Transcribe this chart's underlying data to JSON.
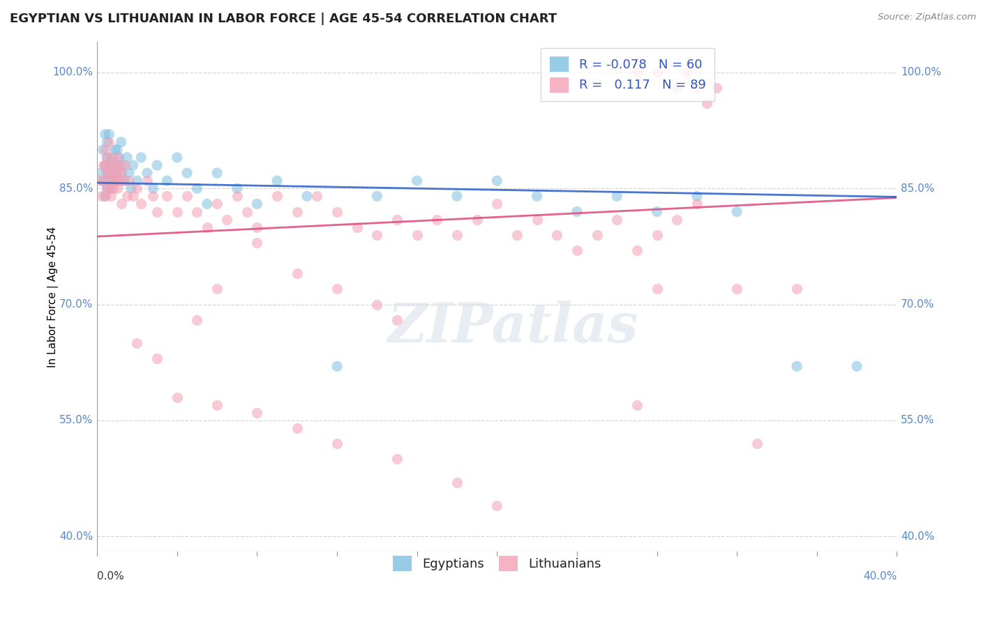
{
  "title": "EGYPTIAN VS LITHUANIAN IN LABOR FORCE | AGE 45-54 CORRELATION CHART",
  "source": "Source: ZipAtlas.com",
  "ylabel": "In Labor Force | Age 45-54",
  "xlim": [
    0.0,
    0.4
  ],
  "ylim": [
    0.38,
    1.04
  ],
  "yticks": [
    0.4,
    0.55,
    0.7,
    0.85,
    1.0
  ],
  "ytick_labels": [
    "40.0%",
    "55.0%",
    "70.0%",
    "85.0%",
    "100.0%"
  ],
  "xtick_left_label": "0.0%",
  "xtick_right_label": "40.0%",
  "egyptian_R": -0.078,
  "egyptian_N": 60,
  "lithuanian_R": 0.117,
  "lithuanian_N": 89,
  "egyptian_color": "#7fbfdf",
  "lithuanian_color": "#f4a0b5",
  "egyptian_line_color": "#3366cc",
  "lithuanian_line_color": "#e05080",
  "watermark_text": "ZIPatlas",
  "legend_color": "#3355bb",
  "background_color": "#ffffff",
  "grid_color": "#cccccc",
  "eg_x": [
    0.002,
    0.003,
    0.003,
    0.004,
    0.004,
    0.004,
    0.005,
    0.005,
    0.005,
    0.005,
    0.006,
    0.006,
    0.006,
    0.007,
    0.007,
    0.007,
    0.008,
    0.008,
    0.009,
    0.009,
    0.01,
    0.01,
    0.01,
    0.011,
    0.012,
    0.012,
    0.013,
    0.014,
    0.015,
    0.016,
    0.017,
    0.018,
    0.02,
    0.022,
    0.025,
    0.028,
    0.03,
    0.035,
    0.04,
    0.045,
    0.05,
    0.055,
    0.06,
    0.07,
    0.08,
    0.09,
    0.105,
    0.12,
    0.14,
    0.16,
    0.18,
    0.2,
    0.22,
    0.24,
    0.26,
    0.28,
    0.3,
    0.32,
    0.35,
    0.38
  ],
  "eg_y": [
    0.87,
    0.9,
    0.86,
    0.88,
    0.92,
    0.84,
    0.89,
    0.87,
    0.85,
    0.91,
    0.88,
    0.86,
    0.92,
    0.89,
    0.87,
    0.85,
    0.88,
    0.86,
    0.9,
    0.87,
    0.88,
    0.86,
    0.9,
    0.89,
    0.87,
    0.91,
    0.88,
    0.86,
    0.89,
    0.87,
    0.85,
    0.88,
    0.86,
    0.89,
    0.87,
    0.85,
    0.88,
    0.86,
    0.89,
    0.87,
    0.85,
    0.83,
    0.87,
    0.85,
    0.83,
    0.86,
    0.84,
    0.62,
    0.84,
    0.86,
    0.84,
    0.86,
    0.84,
    0.82,
    0.84,
    0.82,
    0.84,
    0.82,
    0.62,
    0.62
  ],
  "lt_x": [
    0.001,
    0.002,
    0.003,
    0.003,
    0.004,
    0.004,
    0.004,
    0.005,
    0.005,
    0.005,
    0.006,
    0.006,
    0.006,
    0.007,
    0.007,
    0.007,
    0.008,
    0.008,
    0.008,
    0.009,
    0.009,
    0.01,
    0.01,
    0.01,
    0.011,
    0.011,
    0.012,
    0.012,
    0.013,
    0.014,
    0.015,
    0.016,
    0.018,
    0.02,
    0.022,
    0.025,
    0.028,
    0.03,
    0.035,
    0.04,
    0.045,
    0.05,
    0.055,
    0.06,
    0.065,
    0.07,
    0.075,
    0.08,
    0.09,
    0.1,
    0.11,
    0.12,
    0.13,
    0.14,
    0.15,
    0.16,
    0.17,
    0.18,
    0.19,
    0.2,
    0.21,
    0.22,
    0.23,
    0.24,
    0.25,
    0.26,
    0.27,
    0.28,
    0.29,
    0.3,
    0.05,
    0.06,
    0.08,
    0.1,
    0.12,
    0.14,
    0.15,
    0.02,
    0.03,
    0.04,
    0.06,
    0.08,
    0.1,
    0.12,
    0.15,
    0.18,
    0.2,
    0.28,
    0.35
  ],
  "lt_y": [
    0.86,
    0.84,
    0.88,
    0.86,
    0.9,
    0.88,
    0.84,
    0.87,
    0.85,
    0.89,
    0.87,
    0.85,
    0.91,
    0.88,
    0.86,
    0.84,
    0.87,
    0.85,
    0.89,
    0.88,
    0.86,
    0.87,
    0.85,
    0.89,
    0.88,
    0.86,
    0.87,
    0.83,
    0.86,
    0.88,
    0.84,
    0.86,
    0.84,
    0.85,
    0.83,
    0.86,
    0.84,
    0.82,
    0.84,
    0.82,
    0.84,
    0.82,
    0.8,
    0.83,
    0.81,
    0.84,
    0.82,
    0.8,
    0.84,
    0.82,
    0.84,
    0.82,
    0.8,
    0.79,
    0.81,
    0.79,
    0.81,
    0.79,
    0.81,
    0.83,
    0.79,
    0.81,
    0.79,
    0.77,
    0.79,
    0.81,
    0.77,
    0.79,
    0.81,
    0.83,
    0.68,
    0.72,
    0.78,
    0.74,
    0.72,
    0.7,
    0.68,
    0.65,
    0.63,
    0.58,
    0.57,
    0.56,
    0.54,
    0.52,
    0.5,
    0.47,
    0.44,
    0.72,
    0.72
  ],
  "lt_extra_x": [
    0.27,
    0.28,
    0.29,
    0.295,
    0.3,
    0.305,
    0.31,
    0.32,
    0.33,
    0.27
  ],
  "lt_extra_y": [
    1.0,
    1.0,
    0.98,
    1.0,
    0.98,
    0.96,
    0.98,
    0.72,
    0.52,
    0.57
  ]
}
